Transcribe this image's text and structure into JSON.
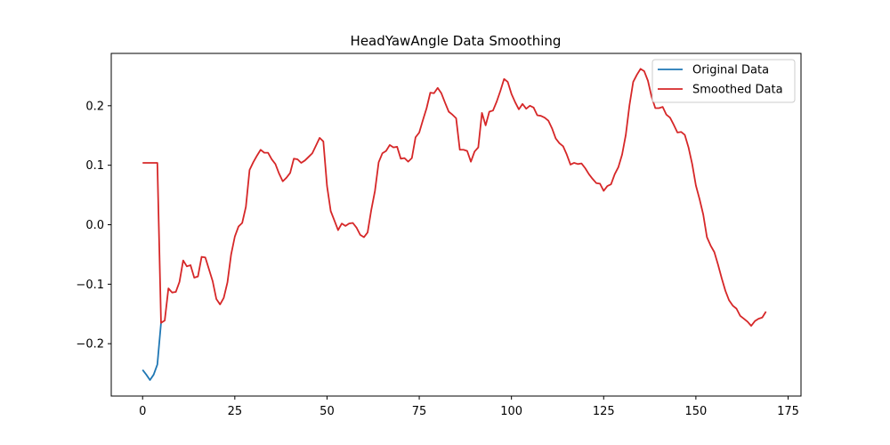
{
  "chart_data": {
    "type": "line",
    "title": "HeadYawAngle Data Smoothing",
    "xlabel": "",
    "ylabel": "",
    "xlim": [
      -8.5,
      178.5
    ],
    "ylim": [
      -0.288,
      0.288
    ],
    "x_ticks": [
      0,
      25,
      50,
      75,
      100,
      125,
      150,
      175
    ],
    "x_tick_labels": [
      "0",
      "25",
      "50",
      "75",
      "100",
      "125",
      "150",
      "175"
    ],
    "y_ticks": [
      -0.2,
      -0.1,
      0.0,
      0.1,
      0.2
    ],
    "y_tick_labels": [
      "−0.2",
      "−0.1",
      "0.0",
      "0.1",
      "0.2"
    ],
    "grid": false,
    "legend_position": "top-right",
    "series": [
      {
        "name": "Original Data",
        "color": "#1f77b4",
        "points": [
          [
            0,
            -0.244
          ],
          [
            1,
            -0.252
          ],
          [
            2,
            -0.261
          ],
          [
            3,
            -0.252
          ],
          [
            4,
            -0.235
          ],
          [
            5,
            -0.165
          ]
        ]
      },
      {
        "name": "Smoothed Data",
        "color": "#d62728",
        "points": [
          [
            0,
            0.104
          ],
          [
            4,
            0.104
          ],
          [
            5,
            -0.165
          ],
          [
            6,
            -0.161
          ],
          [
            7,
            -0.107
          ],
          [
            8,
            -0.114
          ],
          [
            9,
            -0.113
          ],
          [
            10,
            -0.096
          ],
          [
            11,
            -0.06
          ],
          [
            12,
            -0.07
          ],
          [
            13,
            -0.068
          ],
          [
            14,
            -0.089
          ],
          [
            15,
            -0.087
          ],
          [
            16,
            -0.054
          ],
          [
            17,
            -0.055
          ],
          [
            18,
            -0.075
          ],
          [
            19,
            -0.095
          ],
          [
            20,
            -0.125
          ],
          [
            21,
            -0.134
          ],
          [
            22,
            -0.123
          ],
          [
            23,
            -0.097
          ],
          [
            24,
            -0.05
          ],
          [
            25,
            -0.02
          ],
          [
            26,
            -0.003
          ],
          [
            27,
            0.003
          ],
          [
            28,
            0.03
          ],
          [
            29,
            0.092
          ],
          [
            30,
            0.105
          ],
          [
            31,
            0.116
          ],
          [
            32,
            0.126
          ],
          [
            33,
            0.121
          ],
          [
            34,
            0.121
          ],
          [
            35,
            0.11
          ],
          [
            36,
            0.102
          ],
          [
            37,
            0.086
          ],
          [
            38,
            0.073
          ],
          [
            39,
            0.079
          ],
          [
            40,
            0.087
          ],
          [
            41,
            0.111
          ],
          [
            42,
            0.11
          ],
          [
            43,
            0.104
          ],
          [
            44,
            0.108
          ],
          [
            45,
            0.114
          ],
          [
            46,
            0.12
          ],
          [
            47,
            0.133
          ],
          [
            48,
            0.146
          ],
          [
            49,
            0.14
          ],
          [
            50,
            0.065
          ],
          [
            51,
            0.023
          ],
          [
            52,
            0.007
          ],
          [
            53,
            -0.009
          ],
          [
            54,
            0.002
          ],
          [
            55,
            -0.002
          ],
          [
            56,
            0.002
          ],
          [
            57,
            0.003
          ],
          [
            58,
            -0.005
          ],
          [
            59,
            -0.017
          ],
          [
            60,
            -0.021
          ],
          [
            61,
            -0.013
          ],
          [
            62,
            0.025
          ],
          [
            63,
            0.057
          ],
          [
            64,
            0.105
          ],
          [
            65,
            0.12
          ],
          [
            66,
            0.124
          ],
          [
            67,
            0.134
          ],
          [
            68,
            0.13
          ],
          [
            69,
            0.131
          ],
          [
            70,
            0.111
          ],
          [
            71,
            0.112
          ],
          [
            72,
            0.106
          ],
          [
            73,
            0.112
          ],
          [
            74,
            0.147
          ],
          [
            75,
            0.155
          ],
          [
            76,
            0.176
          ],
          [
            77,
            0.196
          ],
          [
            78,
            0.222
          ],
          [
            79,
            0.221
          ],
          [
            80,
            0.23
          ],
          [
            81,
            0.221
          ],
          [
            82,
            0.205
          ],
          [
            83,
            0.19
          ],
          [
            84,
            0.185
          ],
          [
            85,
            0.179
          ],
          [
            86,
            0.126
          ],
          [
            87,
            0.126
          ],
          [
            88,
            0.124
          ],
          [
            89,
            0.106
          ],
          [
            90,
            0.123
          ],
          [
            91,
            0.13
          ],
          [
            92,
            0.188
          ],
          [
            93,
            0.167
          ],
          [
            94,
            0.19
          ],
          [
            95,
            0.192
          ],
          [
            96,
            0.207
          ],
          [
            97,
            0.225
          ],
          [
            98,
            0.245
          ],
          [
            99,
            0.24
          ],
          [
            100,
            0.22
          ],
          [
            101,
            0.206
          ],
          [
            102,
            0.194
          ],
          [
            103,
            0.203
          ],
          [
            104,
            0.195
          ],
          [
            105,
            0.2
          ],
          [
            106,
            0.197
          ],
          [
            107,
            0.184
          ],
          [
            108,
            0.183
          ],
          [
            109,
            0.18
          ],
          [
            110,
            0.175
          ],
          [
            111,
            0.162
          ],
          [
            112,
            0.145
          ],
          [
            113,
            0.137
          ],
          [
            114,
            0.132
          ],
          [
            115,
            0.118
          ],
          [
            116,
            0.101
          ],
          [
            117,
            0.104
          ],
          [
            118,
            0.102
          ],
          [
            119,
            0.103
          ],
          [
            120,
            0.095
          ],
          [
            121,
            0.085
          ],
          [
            122,
            0.077
          ],
          [
            123,
            0.07
          ],
          [
            124,
            0.069
          ],
          [
            125,
            0.057
          ],
          [
            126,
            0.065
          ],
          [
            127,
            0.068
          ],
          [
            128,
            0.085
          ],
          [
            129,
            0.097
          ],
          [
            130,
            0.118
          ],
          [
            131,
            0.151
          ],
          [
            132,
            0.201
          ],
          [
            133,
            0.24
          ],
          [
            134,
            0.252
          ],
          [
            135,
            0.262
          ],
          [
            136,
            0.258
          ],
          [
            137,
            0.242
          ],
          [
            138,
            0.215
          ],
          [
            139,
            0.196
          ],
          [
            140,
            0.196
          ],
          [
            141,
            0.198
          ],
          [
            142,
            0.185
          ],
          [
            143,
            0.18
          ],
          [
            144,
            0.168
          ],
          [
            145,
            0.155
          ],
          [
            146,
            0.156
          ],
          [
            147,
            0.151
          ],
          [
            148,
            0.13
          ],
          [
            149,
            0.102
          ],
          [
            150,
            0.066
          ],
          [
            151,
            0.043
          ],
          [
            152,
            0.017
          ],
          [
            153,
            -0.021
          ],
          [
            154,
            -0.035
          ],
          [
            155,
            -0.046
          ],
          [
            156,
            -0.067
          ],
          [
            157,
            -0.09
          ],
          [
            158,
            -0.111
          ],
          [
            159,
            -0.127
          ],
          [
            160,
            -0.136
          ],
          [
            161,
            -0.141
          ],
          [
            162,
            -0.153
          ],
          [
            163,
            -0.158
          ],
          [
            164,
            -0.163
          ],
          [
            165,
            -0.17
          ],
          [
            166,
            -0.162
          ],
          [
            167,
            -0.158
          ],
          [
            168,
            -0.156
          ],
          [
            169,
            -0.146
          ]
        ]
      }
    ]
  }
}
